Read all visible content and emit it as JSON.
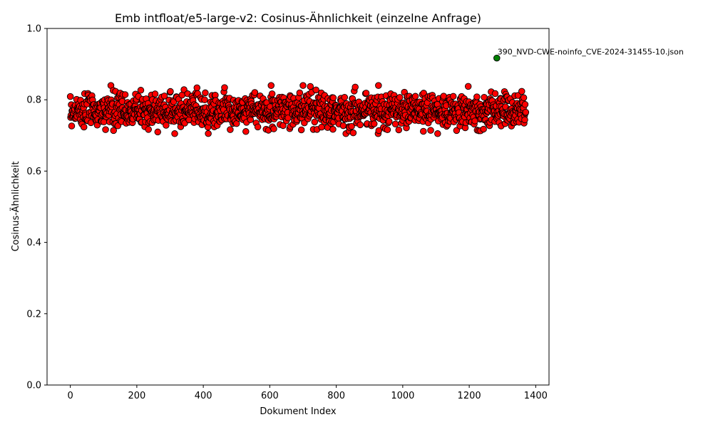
{
  "chart_data": {
    "type": "scatter",
    "title": "Emb intfloat/e5-large-v2: Cosinus-Ähnlichkeit (einzelne Anfrage)",
    "xlabel": "Dokument Index",
    "ylabel": "Cosinus-Ähnlichkeit",
    "xlim": [
      -70,
      1440
    ],
    "ylim": [
      0.0,
      1.0
    ],
    "xticks": [
      "0",
      "200",
      "400",
      "600",
      "800",
      "1000",
      "1200",
      "1400"
    ],
    "yticks": [
      "0.0",
      "0.2",
      "0.4",
      "0.6",
      "0.8",
      "1.0"
    ],
    "grid": false,
    "series": [
      {
        "color": "#ff0000",
        "edgecolor": "#000000",
        "x_range": [
          0,
          1370
        ],
        "count": 1371,
        "y_range": [
          0.705,
          0.84
        ],
        "y_mean": 0.77
      },
      {
        "color": "#008000",
        "edgecolor": "#000000",
        "points": [
          {
            "x": 1283,
            "y": 0.917
          }
        ]
      }
    ],
    "annotations": [
      {
        "text": "390_NVD-CWE-noinfo_CVE-2024-31455-10.json",
        "x": 1283,
        "y": 0.917
      }
    ]
  }
}
